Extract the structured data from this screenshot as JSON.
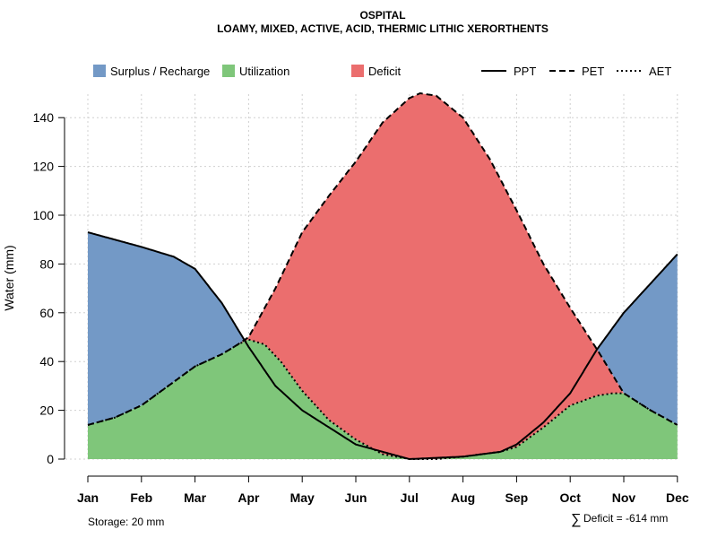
{
  "chart_data": {
    "type": "area",
    "title": "OSPITAL",
    "subtitle": "LOAMY, MIXED, ACTIVE, ACID, THERMIC LITHIC XERORTHENTS",
    "ylabel": "Water (mm)",
    "xlabel": "",
    "ylim": [
      0,
      150
    ],
    "yticks": [
      0,
      20,
      40,
      60,
      80,
      100,
      120,
      140
    ],
    "categories": [
      "Jan",
      "Feb",
      "Mar",
      "Apr",
      "May",
      "Jun",
      "Jul",
      "Aug",
      "Sep",
      "Oct",
      "Nov",
      "Dec"
    ],
    "x": [
      1,
      2,
      3,
      4,
      5,
      6,
      7,
      8,
      9,
      10,
      11,
      12
    ],
    "series": [
      {
        "name": "PPT",
        "style": "solid",
        "points": [
          [
            1,
            93
          ],
          [
            2,
            87
          ],
          [
            2.6,
            83
          ],
          [
            3,
            78
          ],
          [
            3.5,
            64
          ],
          [
            4,
            46
          ],
          [
            4.5,
            30
          ],
          [
            5,
            20
          ],
          [
            6,
            6
          ],
          [
            7,
            0
          ],
          [
            8,
            1
          ],
          [
            8.7,
            3
          ],
          [
            9,
            6
          ],
          [
            9.5,
            15
          ],
          [
            10,
            27
          ],
          [
            10.5,
            45
          ],
          [
            11,
            60
          ],
          [
            11.5,
            72
          ],
          [
            12,
            84
          ]
        ]
      },
      {
        "name": "PET",
        "style": "dashed",
        "points": [
          [
            1,
            14
          ],
          [
            1.5,
            17
          ],
          [
            2,
            22
          ],
          [
            2.5,
            30
          ],
          [
            3,
            38
          ],
          [
            3.5,
            43
          ],
          [
            3.8,
            47
          ],
          [
            4,
            50
          ],
          [
            4.5,
            70
          ],
          [
            5,
            93
          ],
          [
            5.5,
            108
          ],
          [
            6,
            122
          ],
          [
            6.5,
            138
          ],
          [
            7,
            148
          ],
          [
            7.2,
            150
          ],
          [
            7.5,
            149
          ],
          [
            8,
            140
          ],
          [
            8.5,
            123
          ],
          [
            9,
            102
          ],
          [
            9.5,
            80
          ],
          [
            10,
            62
          ],
          [
            10.5,
            45
          ],
          [
            11,
            27
          ],
          [
            11.5,
            20
          ],
          [
            12,
            14
          ]
        ]
      },
      {
        "name": "AET",
        "style": "dotted",
        "points": [
          [
            1,
            14
          ],
          [
            1.5,
            17
          ],
          [
            2,
            22
          ],
          [
            2.5,
            30
          ],
          [
            3,
            38
          ],
          [
            3.5,
            43
          ],
          [
            3.8,
            47
          ],
          [
            4,
            49
          ],
          [
            4.3,
            47
          ],
          [
            4.6,
            40
          ],
          [
            5,
            28
          ],
          [
            5.5,
            16
          ],
          [
            6,
            8
          ],
          [
            6.5,
            2
          ],
          [
            7,
            0
          ],
          [
            7.5,
            0
          ],
          [
            8,
            1
          ],
          [
            8.7,
            3
          ],
          [
            9,
            5
          ],
          [
            9.5,
            13
          ],
          [
            10,
            22
          ],
          [
            10.5,
            26
          ],
          [
            10.8,
            27
          ],
          [
            11,
            27
          ],
          [
            11.5,
            20
          ],
          [
            12,
            14
          ]
        ]
      }
    ],
    "legend": [
      "Surplus / Recharge",
      "Utilization",
      "Deficit",
      "PPT",
      "PET",
      "AET"
    ],
    "legend_position": "top",
    "colors": {
      "surplus": "#7399C6",
      "utilization": "#7FC67A",
      "deficit": "#EB6E6E"
    }
  },
  "notes": {
    "storage": "Storage: 20 mm",
    "deficit_symbol": "∑",
    "deficit": "Deficit = -614 mm"
  }
}
